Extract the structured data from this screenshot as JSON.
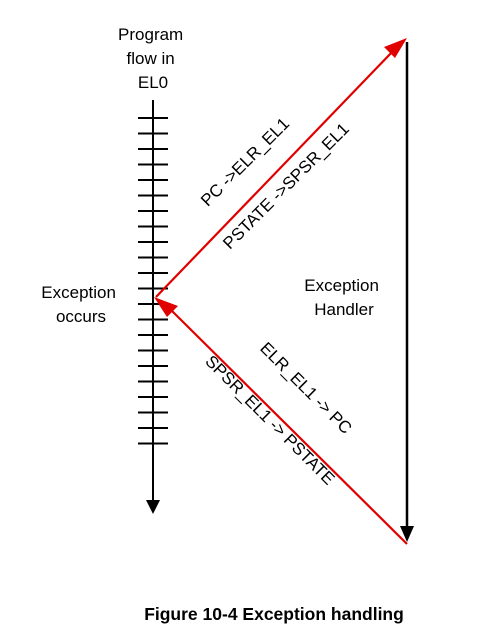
{
  "diagram": {
    "program_flow_label": [
      "Program",
      "flow in",
      "EL0"
    ],
    "exception_occurs_label": [
      "Exception",
      "occurs"
    ],
    "handler_label": [
      "Exception",
      "Handler"
    ],
    "entry_arrow_labels": [
      "PC ->ELR_EL1",
      "PSTATE ->SPSR_EL1"
    ],
    "return_arrow_labels": [
      "ELR_EL1 -> PC",
      "SPSR_EL1 -> PSTATE"
    ],
    "caption": "Figure 10-4 Exception handling",
    "colors": {
      "timeline": "#000000",
      "exception_arrows": "#e00000",
      "handler_arrow": "#000000"
    }
  }
}
